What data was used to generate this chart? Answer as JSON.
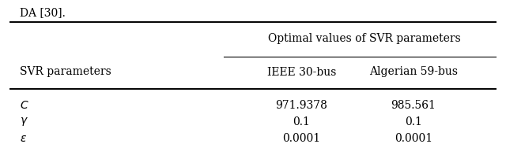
{
  "title_text": "Optimal values of SVR parameters",
  "col1_header": "SVR parameters",
  "col2_header": "IEEE 30-bus",
  "col3_header": "Algerian 59-bus",
  "rows": [
    [
      "$C$",
      "971.9378",
      "985.561"
    ],
    [
      "$\\gamma$",
      "0.1",
      "0.1"
    ],
    [
      "$\\varepsilon$",
      "0.0001",
      "0.0001"
    ]
  ],
  "bg_color": "#ffffff",
  "text_color": "#000000",
  "line_color": "#000000",
  "top_text": "DA [30].",
  "font_size": 10,
  "header_font_size": 10
}
